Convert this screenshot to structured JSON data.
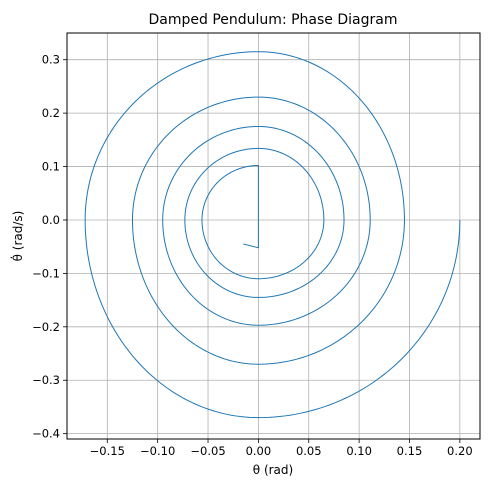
{
  "chart_data": {
    "type": "line",
    "title": "Damped Pendulum: Phase Diagram",
    "xlabel": "θ (rad)",
    "ylabel": "θ̇ (rad/s)",
    "xlim": [
      -0.19,
      0.22
    ],
    "ylim": [
      -0.41,
      0.35
    ],
    "xticks": [
      -0.15,
      -0.1,
      -0.05,
      0.0,
      0.05,
      0.1,
      0.15,
      0.2
    ],
    "xtick_labels": [
      "−0.15",
      "−0.10",
      "−0.05",
      "0.00",
      "0.05",
      "0.10",
      "0.15",
      "0.20"
    ],
    "yticks": [
      -0.4,
      -0.3,
      -0.2,
      -0.1,
      0.0,
      0.1,
      0.2,
      0.3
    ],
    "ytick_labels": [
      "−0.4",
      "−0.3",
      "−0.2",
      "−0.1",
      "0.0",
      "0.1",
      "0.2",
      "0.3"
    ],
    "grid": true,
    "line_color": "#1f77b4",
    "series": [
      {
        "initial_state": [
          0.2,
          0.0
        ],
        "final_state": [
          -0.015,
          -0.045
        ],
        "extremes": {
          "theta_right": [
            0.2,
            0.145,
            0.111,
            0.085,
            0.065
          ],
          "theta_left": [
            -0.172,
            -0.125,
            -0.095,
            -0.073,
            -0.056
          ],
          "omega_top": [
            0.315,
            0.23,
            0.175,
            0.134,
            0.102,
            0.065
          ],
          "omega_bottom": [
            -0.37,
            -0.27,
            -0.197,
            -0.145,
            -0.11,
            -0.083,
            -0.052
          ]
        }
      }
    ]
  }
}
